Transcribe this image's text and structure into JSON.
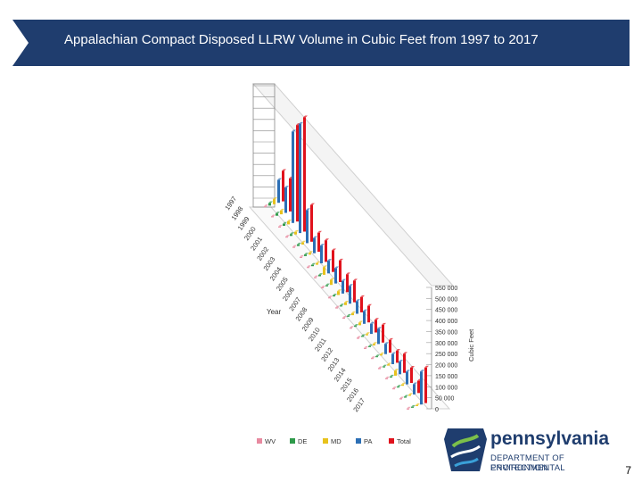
{
  "header": {
    "title": "Appalachian Compact Disposed LLRW Volume in Cubic Feet from 1997 to 2017"
  },
  "chart_data": {
    "type": "bar",
    "title": "Appalachian Compact Disposed LLRW Volume in Cubic Feet from 1997 to 2017",
    "xlabel": "Year",
    "ylabel": "Cubic Feet",
    "ylim": [
      0,
      550000
    ],
    "y_ticks": [
      "0",
      "50 000",
      "100 000",
      "150 000",
      "200 000",
      "250 000",
      "300 000",
      "350 000",
      "400 000",
      "450 000",
      "500 000",
      "550 000"
    ],
    "categories": [
      "1997",
      "1998",
      "1999",
      "2000",
      "2001",
      "2002",
      "2003",
      "2004",
      "2005",
      "2006",
      "2007",
      "2008",
      "2009",
      "2010",
      "2011",
      "2012",
      "2013",
      "2014",
      "2015",
      "2016",
      "2017"
    ],
    "series": [
      {
        "name": "WV",
        "color": "#e88aa0",
        "values": [
          3000,
          3000,
          2500,
          2500,
          2000,
          2000,
          2000,
          1500,
          1500,
          1500,
          1500,
          1200,
          1200,
          1200,
          1000,
          1000,
          1000,
          1000,
          800,
          800,
          800
        ]
      },
      {
        "name": "DE",
        "color": "#2e9a4a",
        "values": [
          10000,
          9000,
          8000,
          7000,
          6000,
          6000,
          5000,
          5000,
          4000,
          4000,
          4000,
          3000,
          3000,
          3000,
          2500,
          2500,
          2000,
          2000,
          2000,
          2000,
          2000
        ]
      },
      {
        "name": "MD",
        "color": "#e8c21c",
        "values": [
          20000,
          15000,
          12000,
          10000,
          8000,
          7000,
          6000,
          30000,
          20000,
          15000,
          10000,
          8000,
          10000,
          5000,
          6000,
          5000,
          4000,
          20000,
          5000,
          4000,
          3000
        ]
      },
      {
        "name": "PA",
        "color": "#2c6fb5",
        "values": [
          90000,
          100000,
          360000,
          430000,
          130000,
          60000,
          70000,
          50000,
          60000,
          50000,
          70000,
          50000,
          50000,
          40000,
          60000,
          40000,
          40000,
          50000,
          50000,
          40000,
          130000
        ]
      },
      {
        "name": "Total",
        "color": "#e0121c",
        "values": [
          120000,
          130000,
          380000,
          450000,
          145000,
          75000,
          85000,
          85000,
          85000,
          70000,
          85000,
          60000,
          65000,
          50000,
          70000,
          50000,
          47000,
          75000,
          60000,
          48000,
          140000
        ]
      }
    ],
    "legend": "bottom",
    "grid": true
  },
  "logo": {
    "name": "pennsylvania",
    "dept_line1": "DEPARTMENT OF ENVIRONMENTAL",
    "dept_line2": "PROTECTION"
  },
  "page_number": "7"
}
